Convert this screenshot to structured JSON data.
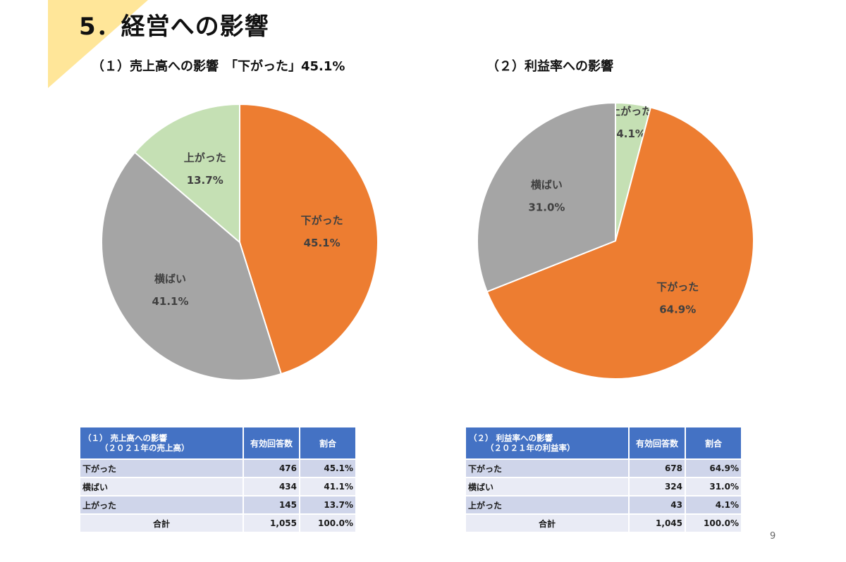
{
  "title": "5．経営への影響",
  "subtitle_1": "（１）売上高への影響　「下がった」45.1%",
  "subtitle_2": "（２）利益率への影響",
  "page_number": "9",
  "colors": {
    "accent_triangle": "#ffe699",
    "down": "#ed7d31",
    "flat": "#a5a5a5",
    "up_chart1": "#c5e0b4",
    "up_chart2": "#c5e0b4",
    "table_header": "#4472c4",
    "row_odd": "#cfd5ea",
    "row_even": "#e9ebf5"
  },
  "chart_data": [
    {
      "type": "pie",
      "slices": [
        {
          "label": "下がった",
          "value": 45.1,
          "display": "45.1%"
        },
        {
          "label": "横ばい",
          "value": 41.1,
          "display": "41.1%"
        },
        {
          "label": "上がった",
          "value": 13.7,
          "display": "13.7%"
        }
      ]
    },
    {
      "type": "pie",
      "slices": [
        {
          "label": "上がった",
          "value": 4.1,
          "display": "4.1%"
        },
        {
          "label": "下がった",
          "value": 64.9,
          "display": "64.9%"
        },
        {
          "label": "横ばい",
          "value": 31.0,
          "display": "31.0%"
        }
      ]
    }
  ],
  "table1": {
    "header_line1": "（１） 売上高への影響",
    "header_line2": "（２０２１年の売上高）",
    "col_count": "有効回答数",
    "col_ratio": "割合",
    "rows": [
      {
        "label": "下がった",
        "count": "476",
        "ratio": "45.1%"
      },
      {
        "label": "横ばい",
        "count": "434",
        "ratio": "41.1%"
      },
      {
        "label": "上がった",
        "count": "145",
        "ratio": "13.7%"
      }
    ],
    "total": {
      "label": "合計",
      "count": "1,055",
      "ratio": "100.0%"
    }
  },
  "table2": {
    "header_line1": "（２） 利益率への影響",
    "header_line2": "（２０２１年の利益率）",
    "col_count": "有効回答数",
    "col_ratio": "割合",
    "rows": [
      {
        "label": "下がった",
        "count": "678",
        "ratio": "64.9%"
      },
      {
        "label": "横ばい",
        "count": "324",
        "ratio": "31.0%"
      },
      {
        "label": "上がった",
        "count": "43",
        "ratio": "4.1%"
      }
    ],
    "total": {
      "label": "合計",
      "count": "1,045",
      "ratio": "100.0%"
    }
  }
}
